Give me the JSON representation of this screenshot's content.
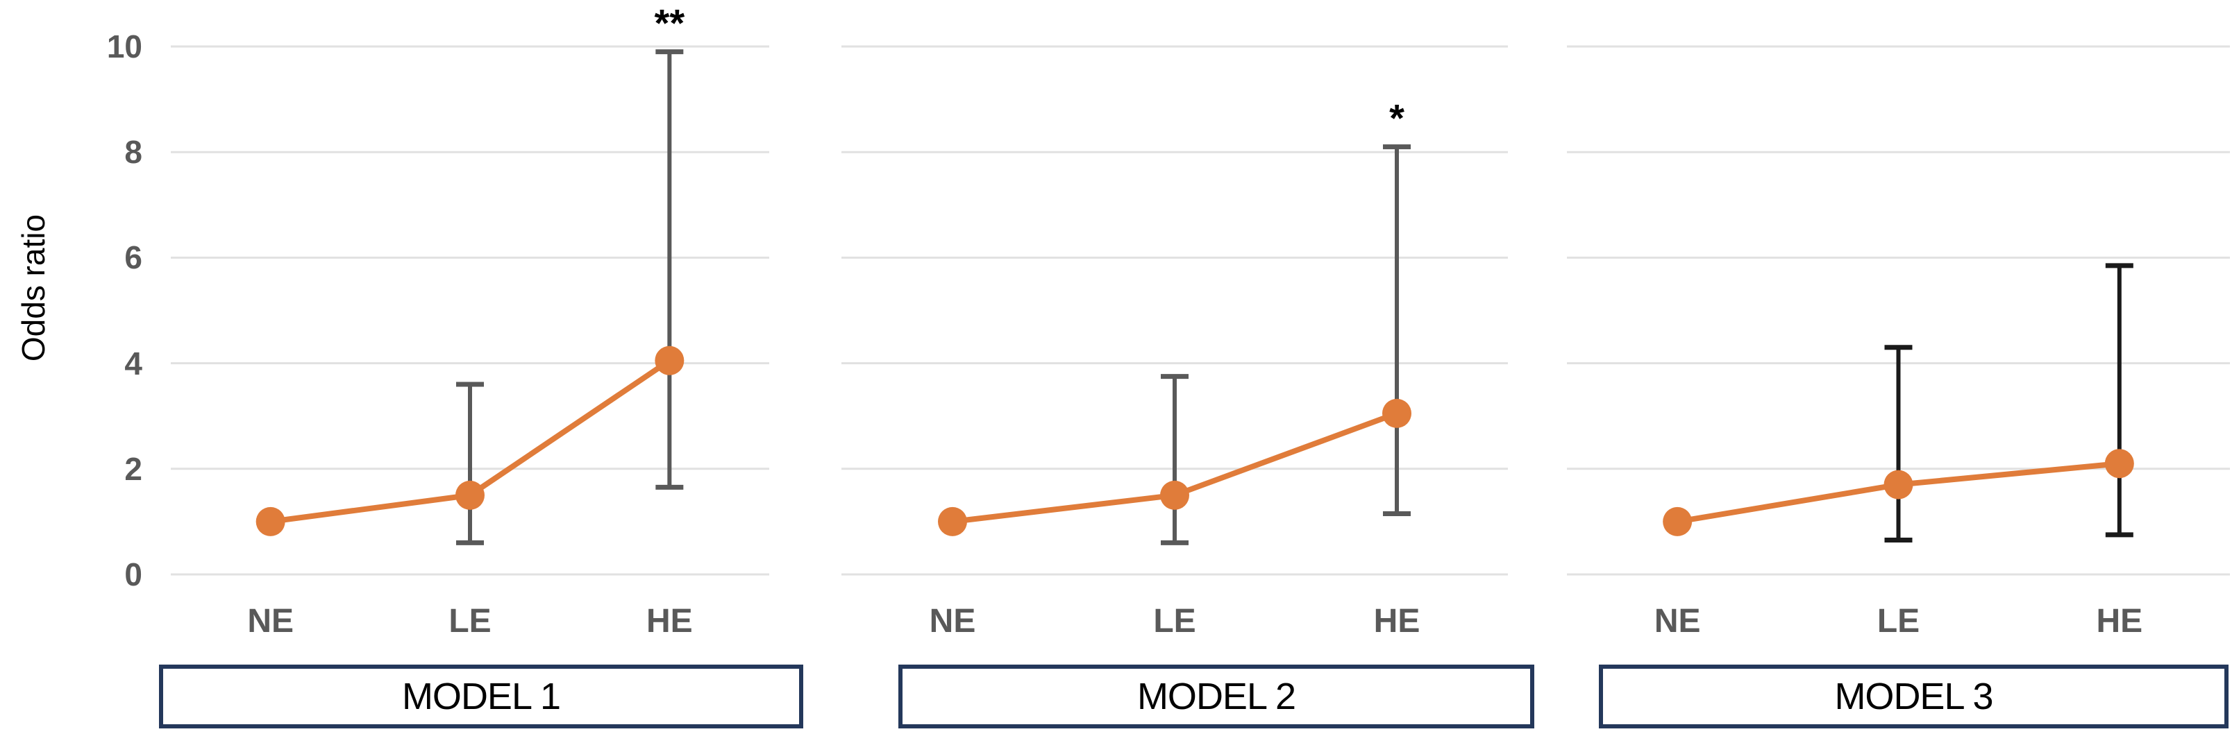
{
  "figure": {
    "ylabel": "Odds ratio",
    "y_ticks": [
      0,
      2,
      4,
      6,
      8,
      10
    ],
    "ylim": [
      0,
      10
    ],
    "grid": true,
    "categories": [
      "NE",
      "LE",
      "HE"
    ]
  },
  "chart_data": [
    {
      "type": "line",
      "title": "MODEL 1",
      "categories": [
        "NE",
        "LE",
        "HE"
      ],
      "series": [
        {
          "name": "Odds ratio",
          "values": [
            1.0,
            1.5,
            4.05
          ]
        }
      ],
      "error_low": [
        null,
        0.6,
        1.65
      ],
      "error_high": [
        null,
        3.6,
        9.9
      ],
      "significance": [
        "",
        "",
        "**"
      ],
      "ylabel": "Odds ratio",
      "ylim": [
        0,
        10
      ],
      "line_color": "#E07C3A",
      "error_bar_color": "#595959"
    },
    {
      "type": "line",
      "title": "MODEL 2",
      "categories": [
        "NE",
        "LE",
        "HE"
      ],
      "series": [
        {
          "name": "Odds ratio",
          "values": [
            1.0,
            1.5,
            3.05
          ]
        }
      ],
      "error_low": [
        null,
        0.6,
        1.15
      ],
      "error_high": [
        null,
        3.75,
        8.1
      ],
      "significance": [
        "",
        "",
        "*"
      ],
      "ylabel": "Odds ratio",
      "ylim": [
        0,
        10
      ],
      "line_color": "#E07C3A",
      "error_bar_color": "#595959"
    },
    {
      "type": "line",
      "title": "MODEL 3",
      "categories": [
        "NE",
        "LE",
        "HE"
      ],
      "series": [
        {
          "name": "Odds ratio",
          "values": [
            1.0,
            1.7,
            2.1
          ]
        }
      ],
      "error_low": [
        null,
        0.65,
        0.75
      ],
      "error_high": [
        null,
        4.3,
        5.85
      ],
      "significance": [
        "",
        "",
        ""
      ],
      "ylabel": "Odds ratio",
      "ylim": [
        0,
        10
      ],
      "line_color": "#E07C3A",
      "error_bar_color": "#1A1A1A"
    }
  ],
  "colors": {
    "series_line": "#E07C3A",
    "marker": "#E07C3A",
    "gridline": "#E1E1E1",
    "tick_label": "#595959",
    "category_label": "#595959",
    "model_box_border": "#24385B",
    "significance": "#000000",
    "background": "#FFFFFF"
  }
}
